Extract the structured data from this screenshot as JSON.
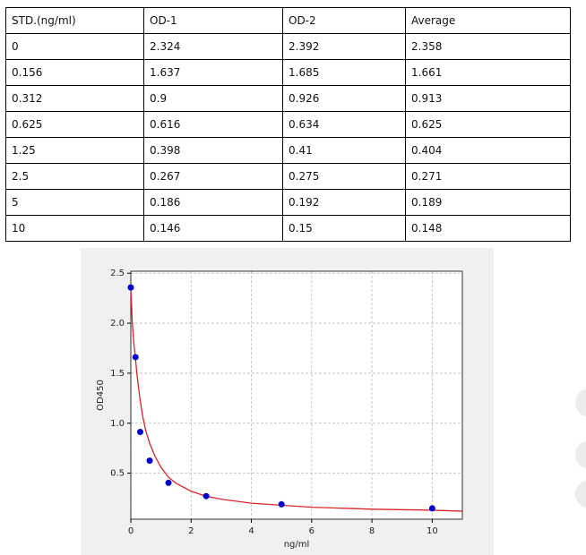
{
  "table": {
    "header": [
      "STD.(ng/ml)",
      "OD-1",
      "OD-2",
      "Average"
    ],
    "rows": [
      [
        "0",
        "2.324",
        "2.392",
        "2.358"
      ],
      [
        "0.156",
        "1.637",
        "1.685",
        "1.661"
      ],
      [
        "0.312",
        "0.9",
        "0.926",
        "0.913"
      ],
      [
        "0.625",
        "0.616",
        "0.634",
        "0.625"
      ],
      [
        "1.25",
        "0.398",
        "0.41",
        "0.404"
      ],
      [
        "2.5",
        "0.267",
        "0.275",
        "0.271"
      ],
      [
        "5",
        "0.186",
        "0.192",
        "0.189"
      ],
      [
        "10",
        "0.146",
        "0.15",
        "0.148"
      ]
    ]
  },
  "chart_data": {
    "type": "scatter",
    "xlabel": "ng/ml",
    "ylabel": "OD450",
    "x": [
      0,
      0.156,
      0.312,
      0.625,
      1.25,
      2.5,
      5,
      10
    ],
    "values": [
      2.358,
      1.661,
      0.913,
      0.625,
      0.404,
      0.271,
      0.189,
      0.148
    ],
    "color": "#0000cc",
    "curve": {
      "color": "#d62728",
      "x": [
        0,
        0.05,
        0.1,
        0.156,
        0.2,
        0.3,
        0.4,
        0.5,
        0.625,
        0.8,
        1,
        1.25,
        1.5,
        2,
        2.5,
        3,
        4,
        5,
        6,
        8,
        10,
        11
      ],
      "values": [
        2.36,
        2.0,
        1.8,
        1.64,
        1.5,
        1.25,
        1.06,
        0.92,
        0.8,
        0.67,
        0.56,
        0.46,
        0.4,
        0.32,
        0.27,
        0.24,
        0.2,
        0.18,
        0.16,
        0.14,
        0.13,
        0.12
      ]
    },
    "xlim": [
      0,
      11
    ],
    "ylim": [
      0.04,
      2.52
    ],
    "xticks": [
      0,
      2,
      4,
      6,
      8,
      10
    ],
    "yticks": [
      0.5,
      {
        "value": 1,
        "label": "1.0"
      },
      1.5,
      {
        "value": 2,
        "label": "2.0"
      },
      2.5
    ],
    "grid": true
  }
}
